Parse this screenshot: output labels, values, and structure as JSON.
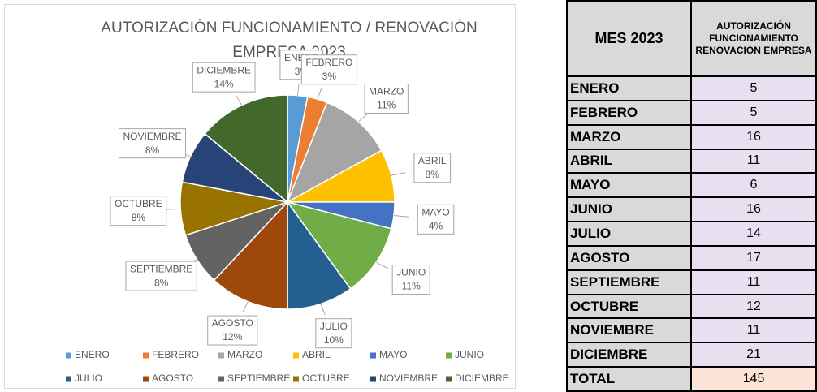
{
  "chart_data": {
    "type": "pie",
    "title": "AUTORIZACIÓN FUNCIONAMIENTO / RENOVACIÓN EMPRESA 2023",
    "categories": [
      "ENERO",
      "FEBRERO",
      "MARZO",
      "ABRIL",
      "MAYO",
      "JUNIO",
      "JULIO",
      "AGOSTO",
      "SEPTIEMBRE",
      "OCTUBRE",
      "NOVIEMBRE",
      "DICIEMBRE"
    ],
    "values": [
      3,
      3,
      11,
      8,
      4,
      11,
      10,
      12,
      8,
      8,
      8,
      14
    ],
    "value_labels": [
      "3%",
      "3%",
      "11%",
      "8%",
      "4%",
      "11%",
      "10%",
      "12%",
      "8%",
      "8%",
      "8%",
      "14%"
    ],
    "colors": [
      "#5B9BD5",
      "#ED7D31",
      "#A5A5A5",
      "#FFC000",
      "#4472C4",
      "#70AD47",
      "#255E91",
      "#9E480E",
      "#636363",
      "#997300",
      "#264478",
      "#43682B"
    ],
    "legend": "bottom"
  },
  "table": {
    "header": [
      "MES 2023",
      "AUTORIZACIÓN FUNCIONAMIENTO RENOVACIÓN EMPRESA"
    ],
    "rows": [
      [
        "ENERO",
        5
      ],
      [
        "FEBRERO",
        5
      ],
      [
        "MARZO",
        16
      ],
      [
        "ABRIL",
        11
      ],
      [
        "MAYO",
        6
      ],
      [
        "JUNIO",
        16
      ],
      [
        "JULIO",
        14
      ],
      [
        "AGOSTO",
        17
      ],
      [
        "SEPTIEMBRE",
        11
      ],
      [
        "OCTUBRE",
        12
      ],
      [
        "NOVIEMBRE",
        11
      ],
      [
        "DICIEMBRE",
        21
      ]
    ],
    "total": [
      "TOTAL",
      145
    ]
  }
}
